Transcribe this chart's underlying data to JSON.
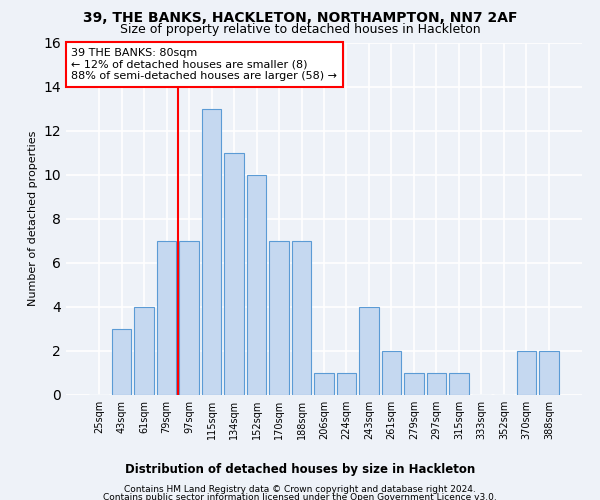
{
  "title": "39, THE BANKS, HACKLETON, NORTHAMPTON, NN7 2AF",
  "subtitle": "Size of property relative to detached houses in Hackleton",
  "xlabel": "Distribution of detached houses by size in Hackleton",
  "ylabel": "Number of detached properties",
  "bar_color": "#c5d8f0",
  "bar_edge_color": "#5b9bd5",
  "categories": [
    "25sqm",
    "43sqm",
    "61sqm",
    "79sqm",
    "97sqm",
    "115sqm",
    "134sqm",
    "152sqm",
    "170sqm",
    "188sqm",
    "206sqm",
    "224sqm",
    "243sqm",
    "261sqm",
    "279sqm",
    "297sqm",
    "315sqm",
    "333sqm",
    "352sqm",
    "370sqm",
    "388sqm"
  ],
  "values": [
    0,
    3,
    4,
    7,
    7,
    13,
    11,
    10,
    7,
    7,
    1,
    1,
    4,
    2,
    1,
    1,
    1,
    0,
    0,
    2,
    2
  ],
  "ylim": [
    0,
    16
  ],
  "yticks": [
    0,
    2,
    4,
    6,
    8,
    10,
    12,
    14,
    16
  ],
  "red_line_x": 3.5,
  "annotation_text": "39 THE BANKS: 80sqm\n← 12% of detached houses are smaller (8)\n88% of semi-detached houses are larger (58) →",
  "footer1": "Contains HM Land Registry data © Crown copyright and database right 2024.",
  "footer2": "Contains public sector information licensed under the Open Government Licence v3.0.",
  "background_color": "#eef2f8",
  "grid_color": "#ffffff",
  "title_fontsize": 10,
  "subtitle_fontsize": 9,
  "ylabel_fontsize": 8,
  "xlabel_fontsize": 8.5,
  "tick_fontsize": 7,
  "ann_fontsize": 8,
  "footer_fontsize": 6.5
}
